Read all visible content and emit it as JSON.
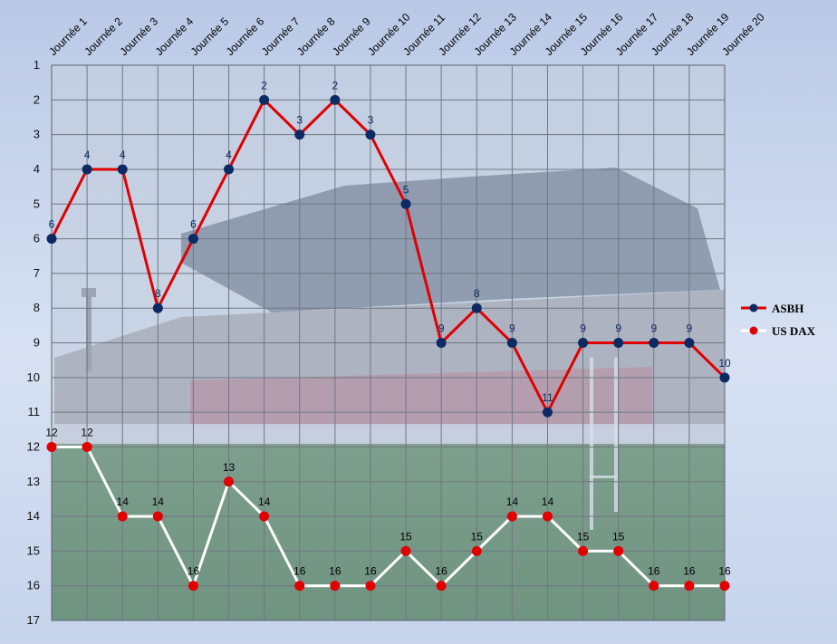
{
  "chart_data": {
    "type": "line",
    "categories": [
      "Journée 1",
      "Journée 2",
      "Journée 3",
      "Journée 4",
      "Journée 5",
      "Journée 6",
      "Journée 7",
      "Journée 8",
      "Journée 9",
      "Journée 10",
      "Journée 11",
      "Journée 12",
      "Journée 13",
      "Journée 14",
      "Journée 15",
      "Journée 16",
      "Journée 17",
      "Journée 18",
      "Journée 19",
      "Journée 20"
    ],
    "y_ticks": [
      1,
      2,
      3,
      4,
      5,
      6,
      7,
      8,
      9,
      10,
      11,
      12,
      13,
      14,
      15,
      16,
      17
    ],
    "ylim": [
      1,
      17
    ],
    "y_reversed": true,
    "x_axis_position": "top",
    "grid": true,
    "legend_position": "right",
    "series": [
      {
        "name": "ASBH",
        "line_color": "#e00000",
        "marker_color": "#0d2a63",
        "label_color": "#0d2a63",
        "values": [
          6,
          4,
          4,
          8,
          6,
          4,
          2,
          3,
          2,
          3,
          5,
          9,
          8,
          9,
          11,
          9,
          9,
          9,
          9,
          10
        ]
      },
      {
        "name": "US DAX",
        "line_color": "#ffffff",
        "marker_color": "#e00000",
        "label_color": "#000000",
        "values": [
          12,
          12,
          14,
          14,
          16,
          13,
          14,
          16,
          16,
          16,
          15,
          16,
          15,
          14,
          14,
          15,
          15,
          16,
          16,
          16
        ]
      }
    ]
  }
}
